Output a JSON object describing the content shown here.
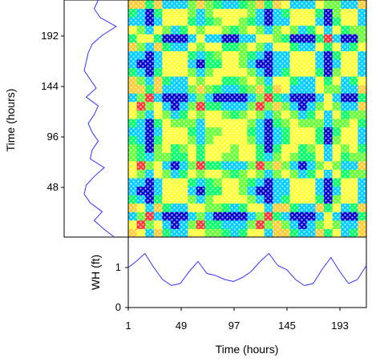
{
  "chart_data": [
    {
      "type": "line",
      "panel": "left-timeseries",
      "ylabel": "Time (hours)",
      "y_ticks": [
        48,
        96,
        144,
        192
      ],
      "ylim": [
        1,
        216
      ],
      "xlim": [
        0,
        1.6
      ],
      "series_color": "#3333ff",
      "series": [
        {
          "y": [
            1,
            8,
            16,
            24,
            32,
            40,
            48,
            56,
            64,
            72,
            80,
            88,
            96,
            104,
            112,
            120,
            128,
            136,
            144,
            152,
            160,
            168,
            176,
            184,
            192,
            200,
            208,
            216
          ],
          "x": [
            1.25,
            1.0,
            0.75,
            0.95,
            0.65,
            0.5,
            0.55,
            0.75,
            1.0,
            0.65,
            0.7,
            0.85,
            0.7,
            0.6,
            0.75,
            0.85,
            0.55,
            0.8,
            0.65,
            0.5,
            0.55,
            0.6,
            0.7,
            0.95,
            1.3,
            0.9,
            0.75,
            0.85
          ]
        }
      ]
    },
    {
      "type": "heatmap",
      "panel": "recurrence-plot",
      "description_visible": false,
      "x_range": [
        1,
        216
      ],
      "y_range": [
        1,
        216
      ],
      "colorscale": [
        "#0000cc",
        "#00ccff",
        "#00ff66",
        "#66ff33",
        "#ffff33",
        "#ffcc33",
        "#ff3333"
      ]
    },
    {
      "type": "line",
      "panel": "bottom-timeseries",
      "xlabel": "Time (hours)",
      "ylabel": "WH (ft)",
      "x_ticks": [
        1,
        49,
        97,
        145,
        193
      ],
      "y_ticks": [
        0,
        1
      ],
      "xlim": [
        1,
        216
      ],
      "ylim": [
        0,
        1.6
      ],
      "series_color": "#3333ff",
      "series": [
        {
          "x": [
            1,
            8,
            16,
            24,
            32,
            40,
            48,
            56,
            64,
            72,
            80,
            88,
            96,
            104,
            112,
            120,
            128,
            136,
            144,
            152,
            160,
            168,
            176,
            184,
            192,
            200,
            208,
            216
          ],
          "y": [
            1.0,
            1.15,
            1.35,
            1.0,
            0.7,
            0.55,
            0.6,
            0.9,
            1.15,
            0.85,
            0.8,
            0.7,
            0.65,
            0.75,
            0.9,
            1.15,
            1.35,
            1.05,
            0.95,
            0.7,
            0.55,
            0.6,
            0.95,
            1.25,
            0.9,
            0.6,
            0.7,
            1.05
          ]
        }
      ]
    }
  ],
  "labels": {
    "left_axis_title": "Time (hours)",
    "left_ticks": [
      "48",
      "96",
      "144",
      "192"
    ],
    "bottom_axis_title": "Time (hours)",
    "bottom_ticks": [
      "1",
      "49",
      "97",
      "145",
      "193"
    ],
    "wh_axis_title": "WH (ft)",
    "wh_ticks": [
      "0",
      "1"
    ]
  }
}
